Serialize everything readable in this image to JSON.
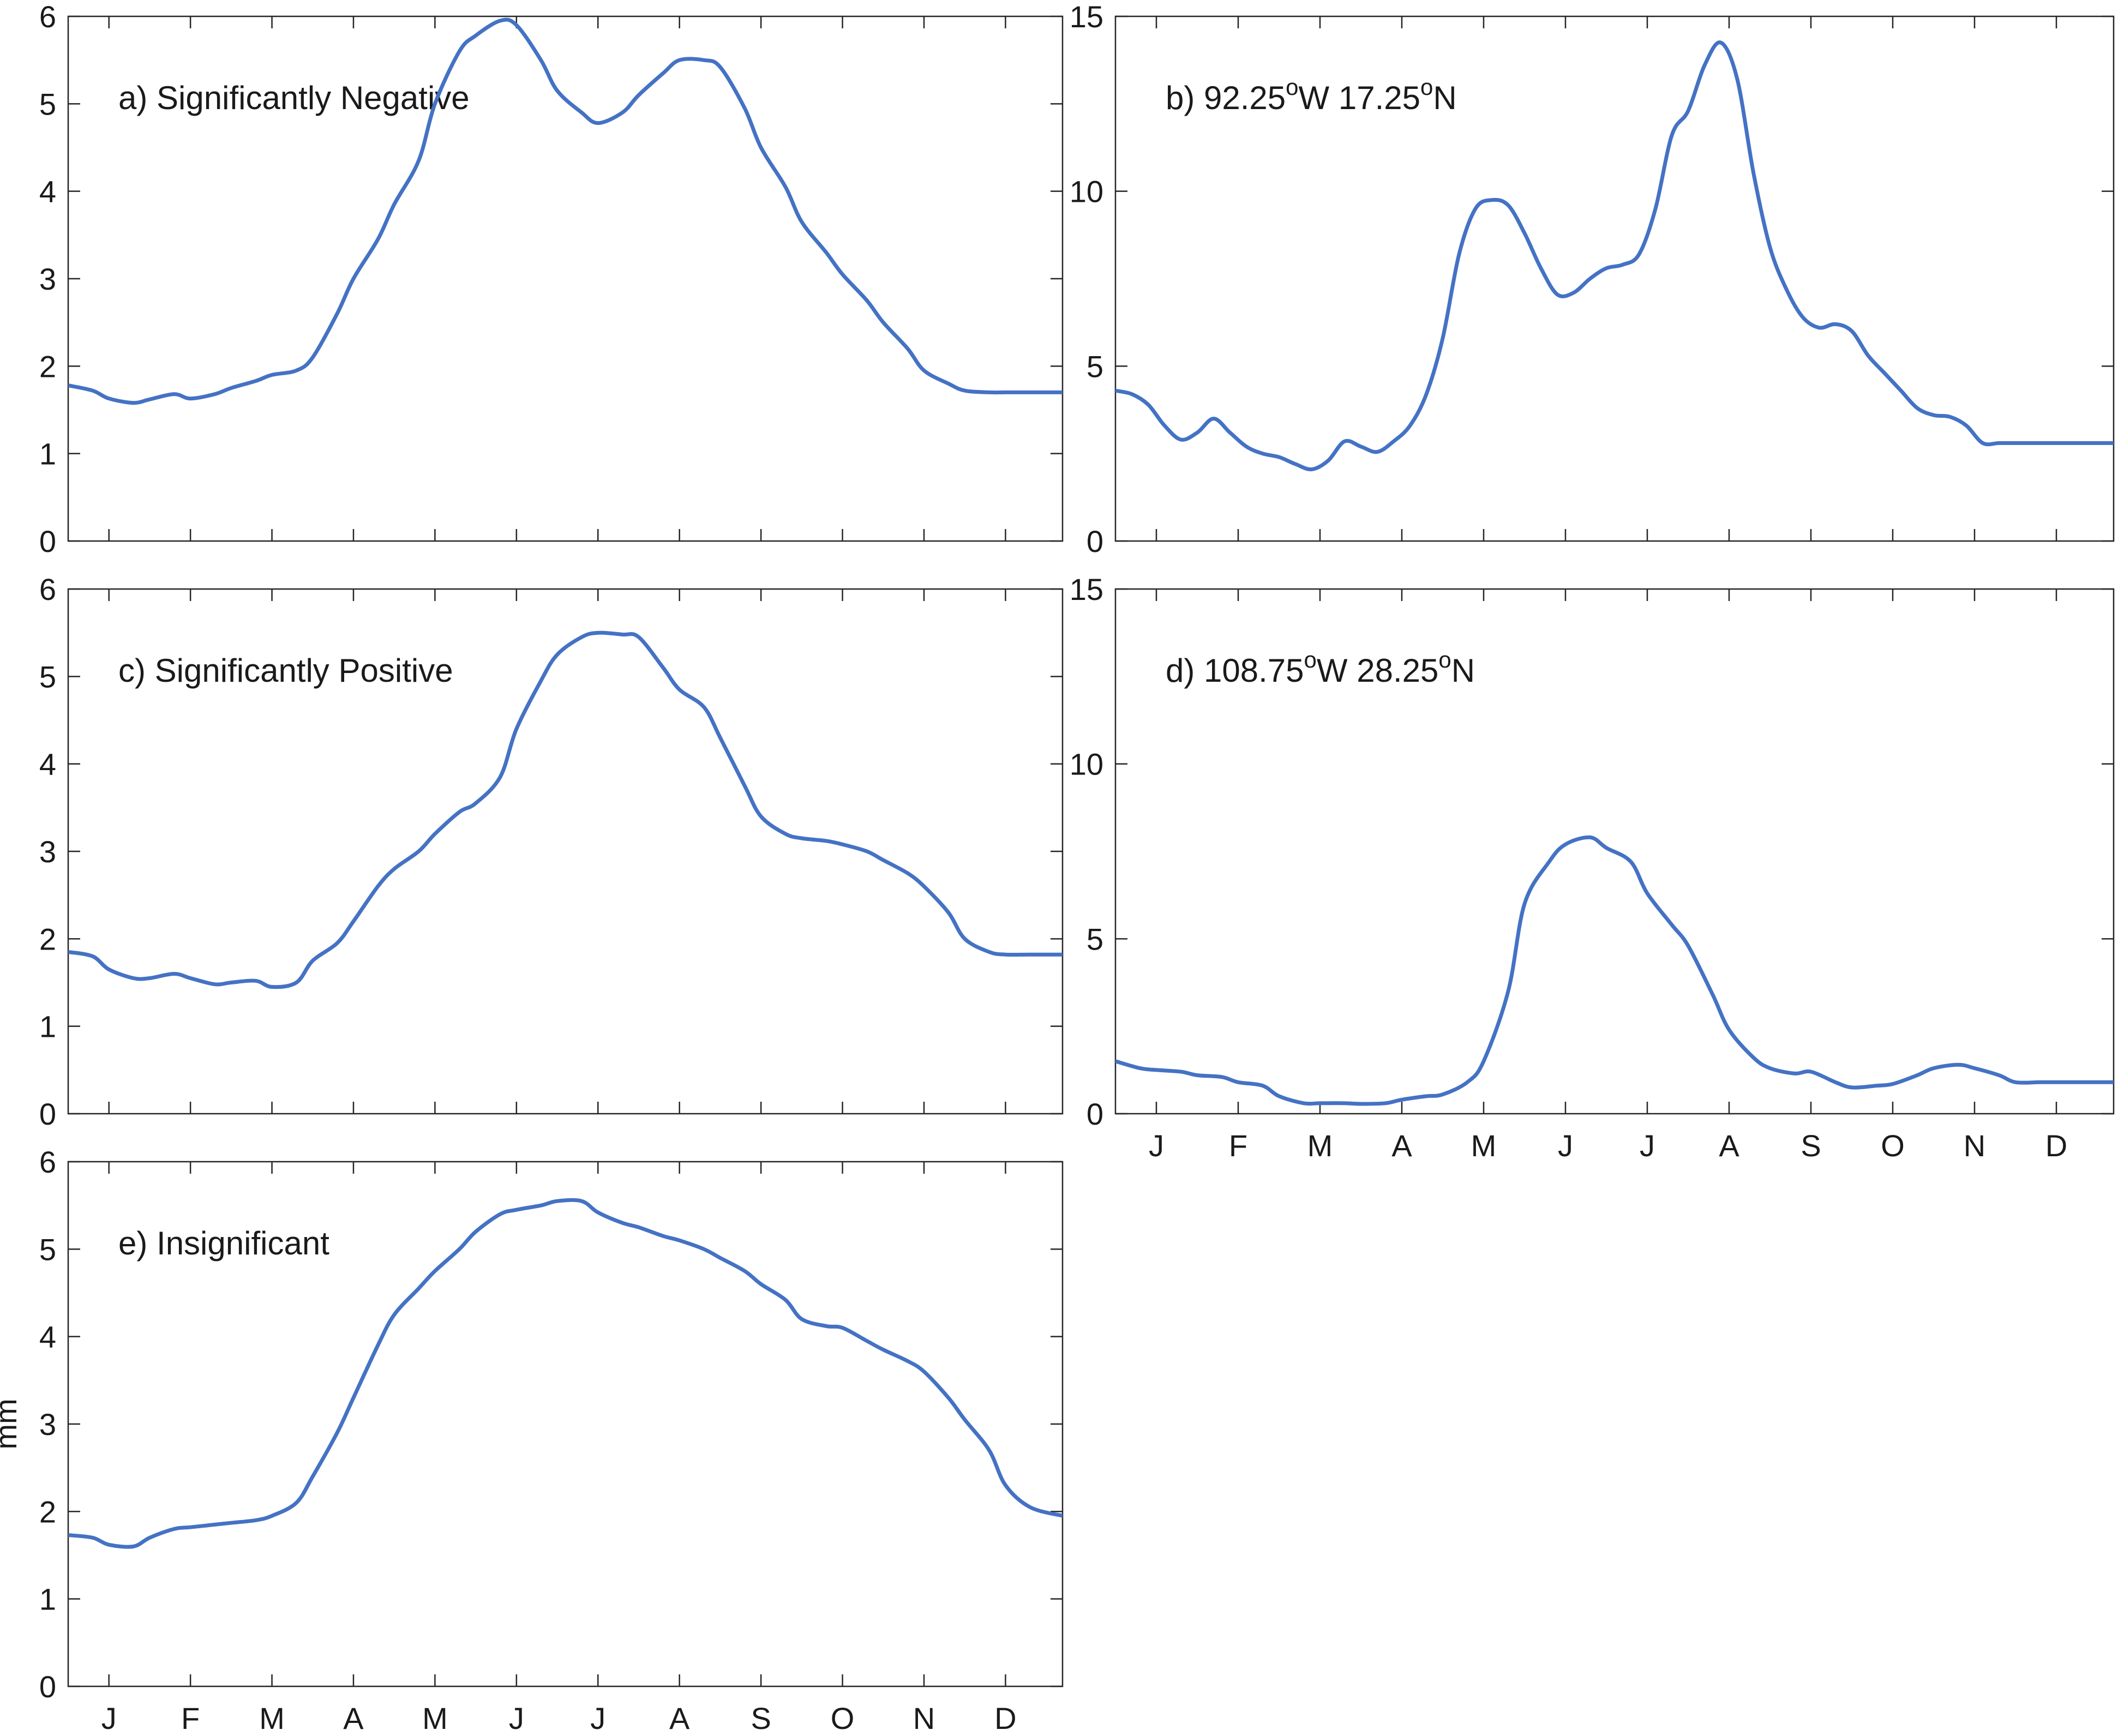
{
  "style": {
    "line_color": "#4472c4",
    "axis_color": "#262626",
    "background": "#ffffff"
  },
  "chart_data": [
    {
      "id": "a",
      "type": "line",
      "label_main": "a) Significantly Negative",
      "ylim": [
        0,
        6
      ],
      "yticks": [
        "0",
        "1",
        "2",
        "3",
        "4",
        "5",
        "6"
      ],
      "xlim": [
        0,
        12.2
      ],
      "xticks": [],
      "ylabel": "",
      "x": [
        0,
        0.3,
        0.5,
        0.8,
        1.0,
        1.3,
        1.5,
        1.8,
        2.0,
        2.3,
        2.5,
        2.8,
        3.0,
        3.3,
        3.5,
        3.8,
        4.0,
        4.3,
        4.5,
        4.8,
        5.0,
        5.3,
        5.5,
        5.8,
        6.0,
        6.3,
        6.5,
        6.8,
        7.0,
        7.3,
        7.5,
        7.8,
        8.0,
        8.3,
        8.5,
        8.8,
        9.0,
        9.3,
        9.5,
        9.8,
        10.0,
        10.3,
        10.5,
        10.8,
        11.0,
        11.3,
        11.5,
        11.8,
        12.2
      ],
      "y": [
        1.78,
        1.72,
        1.63,
        1.58,
        1.62,
        1.68,
        1.63,
        1.68,
        1.75,
        1.83,
        1.9,
        1.95,
        2.1,
        2.6,
        3.0,
        3.45,
        3.85,
        4.35,
        5.0,
        5.6,
        5.78,
        5.95,
        5.9,
        5.5,
        5.15,
        4.9,
        4.78,
        4.9,
        5.1,
        5.35,
        5.5,
        5.5,
        5.42,
        4.95,
        4.5,
        4.05,
        3.65,
        3.3,
        3.05,
        2.75,
        2.5,
        2.2,
        1.95,
        1.8,
        1.72,
        1.7,
        1.7,
        1.7,
        1.7
      ]
    },
    {
      "id": "b",
      "type": "line",
      "label_main": "b) 92.25",
      "label_sup1": "o",
      "label_mid": "W 17.25",
      "label_sup2": "o",
      "label_end": "N",
      "ylim": [
        0,
        15
      ],
      "yticks": [
        "0",
        "5",
        "10",
        "15"
      ],
      "xlim": [
        0,
        12.2
      ],
      "xticks": [],
      "ylabel": "",
      "x": [
        0,
        0.2,
        0.4,
        0.6,
        0.8,
        1.0,
        1.2,
        1.4,
        1.6,
        1.8,
        2.0,
        2.2,
        2.4,
        2.6,
        2.8,
        3.0,
        3.2,
        3.4,
        3.6,
        3.8,
        4.0,
        4.2,
        4.4,
        4.6,
        4.8,
        5.0,
        5.2,
        5.4,
        5.6,
        5.8,
        6.0,
        6.2,
        6.4,
        6.6,
        6.8,
        7.0,
        7.2,
        7.4,
        7.6,
        7.8,
        8.0,
        8.2,
        8.4,
        8.6,
        8.8,
        9.0,
        9.2,
        9.4,
        9.6,
        9.8,
        10.0,
        10.2,
        10.4,
        10.6,
        10.8,
        11.0,
        11.2,
        11.4,
        11.6,
        11.8,
        12.0,
        12.2
      ],
      "y": [
        4.3,
        4.2,
        3.9,
        3.3,
        2.9,
        3.1,
        3.5,
        3.1,
        2.7,
        2.5,
        2.4,
        2.2,
        2.05,
        2.3,
        2.85,
        2.7,
        2.55,
        2.85,
        3.3,
        4.2,
        5.8,
        8.2,
        9.5,
        9.75,
        9.6,
        8.8,
        7.8,
        7.05,
        7.1,
        7.5,
        7.8,
        7.9,
        8.2,
        9.5,
        11.6,
        12.3,
        13.6,
        14.25,
        13.2,
        10.5,
        8.4,
        7.2,
        6.4,
        6.1,
        6.2,
        6.0,
        5.3,
        4.8,
        4.3,
        3.8,
        3.6,
        3.55,
        3.3,
        2.8,
        2.8,
        2.8,
        2.8,
        2.8,
        2.8,
        2.8,
        2.8,
        2.8
      ]
    },
    {
      "id": "c",
      "type": "line",
      "label_main": "c) Significantly Positive",
      "ylim": [
        0,
        6
      ],
      "yticks": [
        "0",
        "1",
        "2",
        "3",
        "4",
        "5",
        "6"
      ],
      "xlim": [
        0,
        12.2
      ],
      "xticks": [],
      "ylabel": "",
      "x": [
        0,
        0.3,
        0.5,
        0.8,
        1.0,
        1.3,
        1.5,
        1.8,
        2.0,
        2.3,
        2.5,
        2.8,
        3.0,
        3.3,
        3.5,
        3.8,
        4.0,
        4.3,
        4.5,
        4.8,
        5.0,
        5.3,
        5.5,
        5.8,
        6.0,
        6.3,
        6.5,
        6.8,
        7.0,
        7.3,
        7.5,
        7.8,
        8.0,
        8.3,
        8.5,
        8.8,
        9.0,
        9.3,
        9.5,
        9.8,
        10.0,
        10.3,
        10.5,
        10.8,
        11.0,
        11.3,
        11.5,
        11.8,
        12.2
      ],
      "y": [
        1.85,
        1.8,
        1.65,
        1.55,
        1.55,
        1.6,
        1.55,
        1.48,
        1.5,
        1.52,
        1.45,
        1.5,
        1.75,
        1.95,
        2.2,
        2.6,
        2.8,
        3.0,
        3.2,
        3.45,
        3.55,
        3.85,
        4.4,
        4.95,
        5.25,
        5.45,
        5.5,
        5.48,
        5.45,
        5.1,
        4.85,
        4.65,
        4.3,
        3.75,
        3.4,
        3.2,
        3.15,
        3.12,
        3.08,
        3.0,
        2.9,
        2.75,
        2.6,
        2.3,
        2.0,
        1.85,
        1.82,
        1.82,
        1.82
      ]
    },
    {
      "id": "d",
      "type": "line",
      "label_main": "d) 108.75",
      "label_sup1": "o",
      "label_mid": "W 28.25",
      "label_sup2": "o",
      "label_end": "N",
      "ylim": [
        0,
        15
      ],
      "yticks": [
        "0",
        "5",
        "10",
        "15"
      ],
      "xlim": [
        0,
        12.2
      ],
      "xticks": [
        "J",
        "F",
        "M",
        "A",
        "M",
        "J",
        "J",
        "A",
        "S",
        "O",
        "N",
        "D"
      ],
      "ylabel": "",
      "x": [
        0,
        0.3,
        0.5,
        0.8,
        1.0,
        1.3,
        1.5,
        1.8,
        2.0,
        2.3,
        2.5,
        2.8,
        3.0,
        3.3,
        3.5,
        3.8,
        4.0,
        4.3,
        4.5,
        4.8,
        5.0,
        5.3,
        5.5,
        5.8,
        6.0,
        6.3,
        6.5,
        6.8,
        7.0,
        7.3,
        7.5,
        7.8,
        8.0,
        8.3,
        8.5,
        8.8,
        9.0,
        9.3,
        9.5,
        9.8,
        10.0,
        10.3,
        10.5,
        10.8,
        11.0,
        11.3,
        11.5,
        11.8,
        12.2
      ],
      "y": [
        1.5,
        1.3,
        1.25,
        1.2,
        1.1,
        1.05,
        0.9,
        0.8,
        0.5,
        0.3,
        0.3,
        0.3,
        0.28,
        0.3,
        0.4,
        0.5,
        0.55,
        0.9,
        1.5,
        3.5,
        6.0,
        7.2,
        7.7,
        7.9,
        7.6,
        7.2,
        6.3,
        5.4,
        4.8,
        3.4,
        2.4,
        1.6,
        1.3,
        1.15,
        1.2,
        0.9,
        0.75,
        0.8,
        0.85,
        1.1,
        1.3,
        1.4,
        1.3,
        1.1,
        0.9,
        0.9,
        0.9,
        0.9,
        0.9
      ]
    },
    {
      "id": "e",
      "type": "line",
      "label_main": "e) Insignificant",
      "ylim": [
        0,
        6
      ],
      "yticks": [
        "0",
        "1",
        "2",
        "3",
        "4",
        "5",
        "6"
      ],
      "xlim": [
        0,
        12.2
      ],
      "xticks": [
        "J",
        "F",
        "M",
        "A",
        "M",
        "J",
        "J",
        "A",
        "S",
        "O",
        "N",
        "D"
      ],
      "ylabel": "mm",
      "x": [
        0,
        0.3,
        0.5,
        0.8,
        1.0,
        1.3,
        1.5,
        1.8,
        2.0,
        2.3,
        2.5,
        2.8,
        3.0,
        3.3,
        3.5,
        3.8,
        4.0,
        4.3,
        4.5,
        4.8,
        5.0,
        5.3,
        5.5,
        5.8,
        6.0,
        6.3,
        6.5,
        6.8,
        7.0,
        7.3,
        7.5,
        7.8,
        8.0,
        8.3,
        8.5,
        8.8,
        9.0,
        9.3,
        9.5,
        9.8,
        10.0,
        10.3,
        10.5,
        10.8,
        11.0,
        11.3,
        11.5,
        11.8,
        12.2
      ],
      "y": [
        1.73,
        1.7,
        1.62,
        1.6,
        1.7,
        1.8,
        1.82,
        1.85,
        1.87,
        1.9,
        1.95,
        2.1,
        2.4,
        2.9,
        3.3,
        3.9,
        4.25,
        4.55,
        4.75,
        5.0,
        5.2,
        5.4,
        5.45,
        5.5,
        5.55,
        5.55,
        5.42,
        5.3,
        5.25,
        5.15,
        5.1,
        5.0,
        4.9,
        4.75,
        4.6,
        4.42,
        4.2,
        4.12,
        4.1,
        3.95,
        3.85,
        3.72,
        3.6,
        3.3,
        3.05,
        2.7,
        2.3,
        2.05,
        1.95
      ]
    }
  ]
}
